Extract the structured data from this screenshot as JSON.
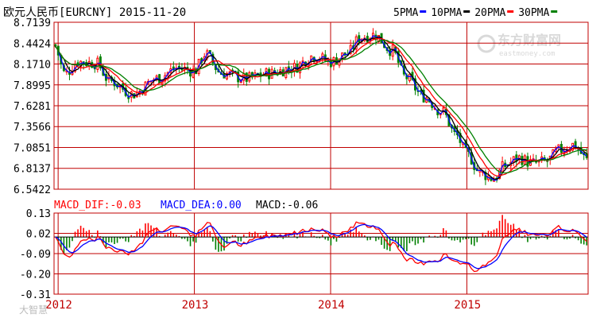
{
  "header": {
    "title": "欧元人民币[EURCNY] 2015-11-20",
    "legend": [
      {
        "label": "5PMA",
        "color": "#0000ff"
      },
      {
        "label": "10PMA",
        "color": "#000000"
      },
      {
        "label": "20PMA",
        "color": "#ff0000"
      },
      {
        "label": "30PMA",
        "color": "#008000"
      }
    ]
  },
  "watermark": {
    "brand": "东方财富网",
    "url": "eastmoney.com"
  },
  "bottom_watermark": "大智慧",
  "macd_header": {
    "dif": "MACD_DIF:-0.03",
    "dea": "MACD_DEA:0.00",
    "macd": "MACD:-0.06"
  },
  "colors": {
    "up": "#ff0000",
    "down": "#008000",
    "grid": "#c00000",
    "axis_text": "#000000",
    "year_text": "#c00000"
  },
  "chart_data": [
    {
      "type": "candlestick",
      "title": "欧元人民币[EURCNY] 2015-11-20",
      "ylim": [
        6.5422,
        8.7139
      ],
      "y_ticks": [
        "8.7139",
        "8.4424",
        "8.1710",
        "7.8995",
        "7.6281",
        "7.3566",
        "7.0851",
        "6.8137",
        "6.5422"
      ],
      "x_ticks": [
        "2012",
        "2013",
        "2014",
        "2015"
      ],
      "x_range": [
        2011.97,
        2015.89
      ],
      "anchors": [
        {
          "x": 2011.97,
          "y": 8.42
        },
        {
          "x": 2012.05,
          "y": 8.05
        },
        {
          "x": 2012.15,
          "y": 8.2
        },
        {
          "x": 2012.28,
          "y": 8.18
        },
        {
          "x": 2012.38,
          "y": 7.95
        },
        {
          "x": 2012.55,
          "y": 7.78
        },
        {
          "x": 2012.72,
          "y": 7.98
        },
        {
          "x": 2012.88,
          "y": 8.12
        },
        {
          "x": 2013.0,
          "y": 8.08
        },
        {
          "x": 2013.08,
          "y": 8.3
        },
        {
          "x": 2013.2,
          "y": 8.05
        },
        {
          "x": 2013.38,
          "y": 7.98
        },
        {
          "x": 2013.55,
          "y": 8.05
        },
        {
          "x": 2013.72,
          "y": 8.12
        },
        {
          "x": 2013.88,
          "y": 8.28
        },
        {
          "x": 2014.0,
          "y": 8.2
        },
        {
          "x": 2014.12,
          "y": 8.3
        },
        {
          "x": 2014.22,
          "y": 8.52
        },
        {
          "x": 2014.32,
          "y": 8.55
        },
        {
          "x": 2014.45,
          "y": 8.35
        },
        {
          "x": 2014.55,
          "y": 8.0
        },
        {
          "x": 2014.68,
          "y": 7.75
        },
        {
          "x": 2014.82,
          "y": 7.55
        },
        {
          "x": 2014.92,
          "y": 7.25
        },
        {
          "x": 2015.0,
          "y": 7.0
        },
        {
          "x": 2015.1,
          "y": 6.75
        },
        {
          "x": 2015.2,
          "y": 6.68
        },
        {
          "x": 2015.28,
          "y": 6.85
        },
        {
          "x": 2015.38,
          "y": 6.95
        },
        {
          "x": 2015.48,
          "y": 6.88
        },
        {
          "x": 2015.58,
          "y": 6.9
        },
        {
          "x": 2015.68,
          "y": 7.05
        },
        {
          "x": 2015.78,
          "y": 7.12
        },
        {
          "x": 2015.89,
          "y": 6.92
        }
      ],
      "moving_averages": [
        "5PMA",
        "10PMA",
        "20PMA",
        "30PMA"
      ]
    },
    {
      "type": "bar+line",
      "title": "MACD",
      "ylim": [
        -0.31,
        0.13
      ],
      "y_ticks": [
        "0.13",
        "0.02",
        "-0.09",
        "-0.20",
        "-0.31"
      ],
      "x_ticks": [
        "2012",
        "2013",
        "2014",
        "2015"
      ],
      "series": [
        {
          "name": "MACD_DIF",
          "color": "#ff0000",
          "last": -0.03
        },
        {
          "name": "MACD_DEA",
          "color": "#0000ff",
          "last": 0.0
        },
        {
          "name": "MACD",
          "color": "#000000",
          "last": -0.06
        }
      ]
    }
  ]
}
